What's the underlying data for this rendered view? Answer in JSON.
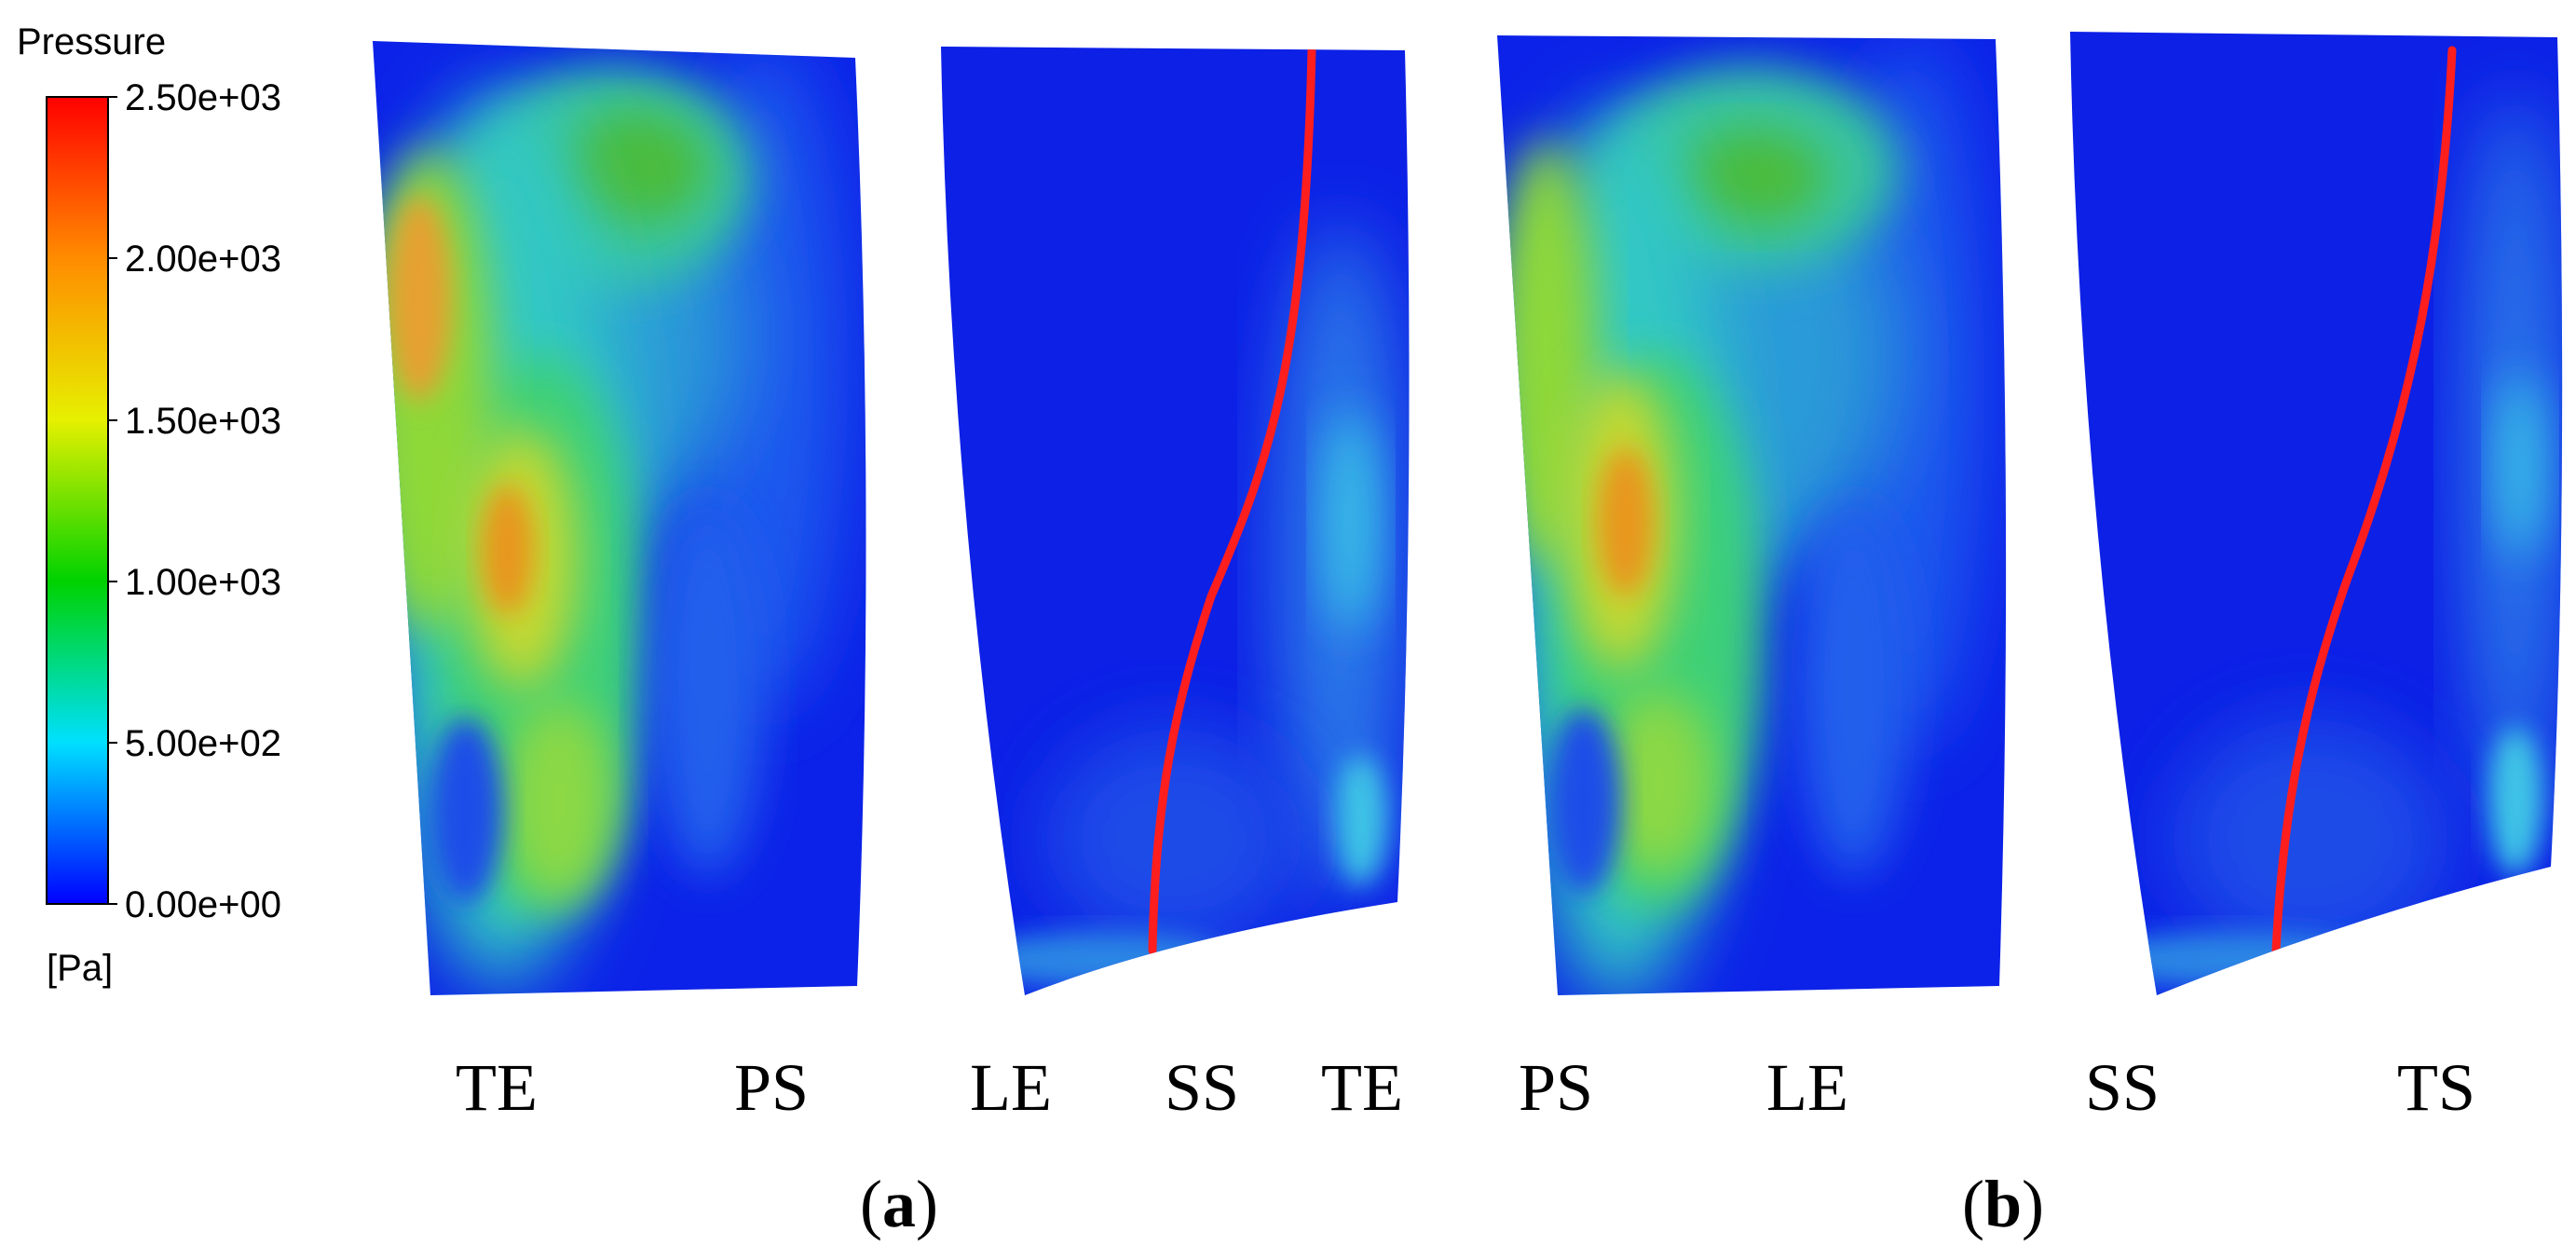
{
  "legend": {
    "title": "Pressure",
    "unit": "[Pa]",
    "ticks": [
      "2.50e+03",
      "2.00e+03",
      "1.50e+03",
      "1.00e+03",
      "5.00e+02",
      "0.00e+00"
    ],
    "gradient_colors": [
      "#ff0000",
      "#ff8c00",
      "#ffff00",
      "#00d200",
      "#00ffff",
      "#0000ff"
    ]
  },
  "colors": {
    "low": "#0a1ee6",
    "mid_blue": "#1e5af0",
    "cyan": "#32c8e6",
    "green": "#28c85a",
    "yellow": "#c8dc28",
    "orange": "#e6961e",
    "line": "#ff1e1e"
  },
  "region_labels": [
    "TE",
    "PS",
    "LE",
    "SS",
    "TE",
    "PS",
    "LE",
    "SS",
    "TS"
  ],
  "panel_labels": [
    {
      "open": "(",
      "letter": "a",
      "close": ")"
    },
    {
      "open": "(",
      "letter": "b",
      "close": ")"
    }
  ]
}
